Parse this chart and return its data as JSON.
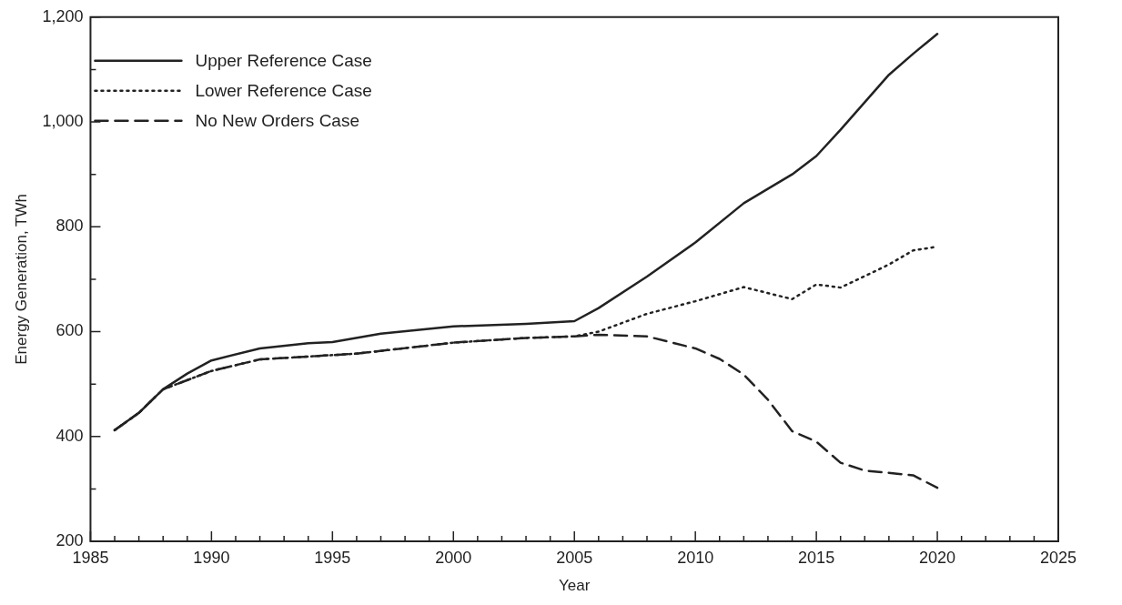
{
  "chart_data": {
    "type": "line",
    "xlabel": "Year",
    "ylabel": "Energy Generation, TWh",
    "xlim": [
      1985,
      2025
    ],
    "ylim": [
      200,
      1200
    ],
    "xticks": [
      1985,
      {
        "value": 1986,
        "label": null
      },
      {
        "value": 1987,
        "label": null
      },
      {
        "value": 1988,
        "label": null
      },
      {
        "value": 1989,
        "label": null
      },
      1990,
      {
        "value": 1991,
        "label": null
      },
      {
        "value": 1992,
        "label": null
      },
      {
        "value": 1993,
        "label": null
      },
      {
        "value": 1994,
        "label": null
      },
      1995,
      {
        "value": 1996,
        "label": null
      },
      {
        "value": 1997,
        "label": null
      },
      {
        "value": 1998,
        "label": null
      },
      {
        "value": 1999,
        "label": null
      },
      2000,
      {
        "value": 2001,
        "label": null
      },
      {
        "value": 2002,
        "label": null
      },
      {
        "value": 2003,
        "label": null
      },
      {
        "value": 2004,
        "label": null
      },
      2005,
      {
        "value": 2006,
        "label": null
      },
      {
        "value": 2007,
        "label": null
      },
      {
        "value": 2008,
        "label": null
      },
      {
        "value": 2009,
        "label": null
      },
      2010,
      {
        "value": 2011,
        "label": null
      },
      {
        "value": 2012,
        "label": null
      },
      {
        "value": 2013,
        "label": null
      },
      {
        "value": 2014,
        "label": null
      },
      2015,
      {
        "value": 2016,
        "label": null
      },
      {
        "value": 2017,
        "label": null
      },
      {
        "value": 2018,
        "label": null
      },
      {
        "value": 2019,
        "label": null
      },
      2020,
      {
        "value": 2021,
        "label": null
      },
      {
        "value": 2022,
        "label": null
      },
      {
        "value": 2023,
        "label": null
      },
      {
        "value": 2024,
        "label": null
      },
      2025
    ],
    "yticks": [
      200,
      {
        "value": 300,
        "label": null
      },
      400,
      {
        "value": 500,
        "label": null
      },
      600,
      {
        "value": 700,
        "label": null
      },
      800,
      {
        "value": 900,
        "label": null
      },
      {
        "value": 1000,
        "label": "1,000"
      },
      {
        "value": 1100,
        "label": null
      },
      {
        "value": 1200,
        "label": "1,200"
      }
    ],
    "grid": false,
    "legend": "top left",
    "marker": "none",
    "series": [
      {
        "name": "Upper Reference Case",
        "color": "#222222",
        "line_style": "solid",
        "x": [
          1986,
          1987,
          1988,
          1989,
          1990,
          1992,
          1994,
          1995,
          1997,
          2000,
          2003,
          2005,
          2006,
          2008,
          2010,
          2012,
          2014,
          2015,
          2016,
          2018,
          2019,
          2020
        ],
        "values": [
          412,
          445,
          490,
          520,
          545,
          568,
          578,
          580,
          596,
          610,
          615,
          620,
          645,
          705,
          770,
          845,
          900,
          935,
          985,
          1090,
          1130,
          1168
        ]
      },
      {
        "name": "Lower Reference Case",
        "color": "#222222",
        "line_style": "dotted",
        "x": [
          1986,
          1987,
          1988,
          1990,
          1992,
          1996,
          2000,
          2003,
          2005,
          2006,
          2008,
          2010,
          2012,
          2014,
          2015,
          2016,
          2018,
          2019,
          2020
        ],
        "values": [
          412,
          445,
          490,
          525,
          547,
          558,
          579,
          588,
          591,
          600,
          634,
          658,
          685,
          662,
          690,
          684,
          728,
          755,
          762
        ]
      },
      {
        "name": "No New Orders Case",
        "color": "#222222",
        "line_style": "dashed",
        "x": [
          1986,
          1987,
          1988,
          1990,
          1992,
          1996,
          2000,
          2003,
          2005,
          2006,
          2008,
          2010,
          2011,
          2012,
          2013,
          2014,
          2015,
          2016,
          2017,
          2019,
          2020
        ],
        "values": [
          412,
          445,
          490,
          525,
          547,
          558,
          579,
          588,
          591,
          594,
          591,
          568,
          548,
          518,
          470,
          410,
          390,
          350,
          335,
          326,
          302
        ]
      }
    ]
  }
}
